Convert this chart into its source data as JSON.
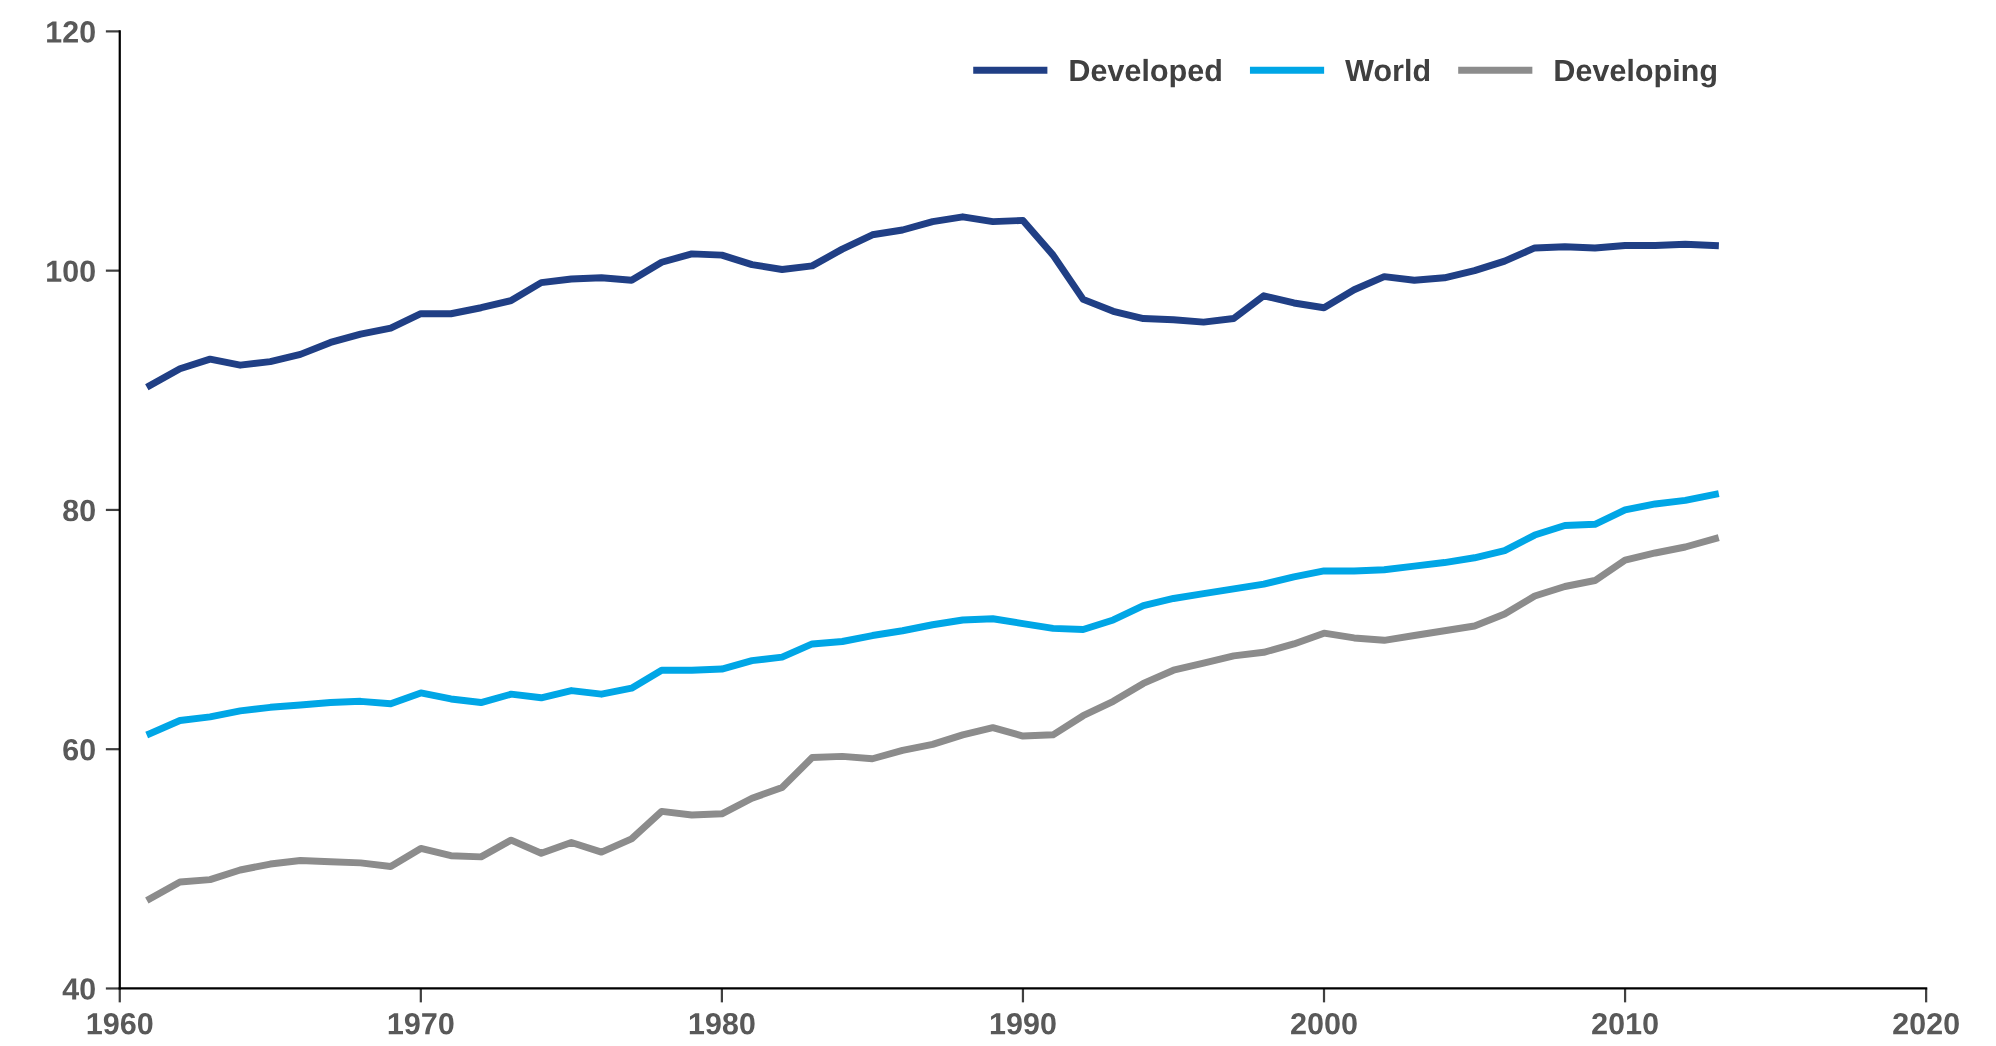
{
  "chart_data": {
    "type": "line",
    "x": [
      1961,
      1962,
      1963,
      1964,
      1965,
      1966,
      1967,
      1968,
      1969,
      1970,
      1971,
      1972,
      1973,
      1974,
      1975,
      1976,
      1977,
      1978,
      1979,
      1980,
      1981,
      1982,
      1983,
      1984,
      1985,
      1986,
      1987,
      1988,
      1989,
      1990,
      1991,
      1992,
      1993,
      1994,
      1995,
      1996,
      1997,
      1998,
      1999,
      2000,
      2001,
      2002,
      2003,
      2004,
      2005,
      2006,
      2007,
      2008,
      2009,
      2010,
      2011,
      2012,
      2013
    ],
    "series": [
      {
        "name": "Developed",
        "color": "#203f85",
        "values": [
          90.4,
          91.8,
          92.6,
          92.1,
          92.4,
          93.0,
          94.0,
          94.7,
          95.2,
          96.4,
          96.4,
          96.9,
          97.5,
          99.0,
          99.3,
          99.4,
          99.2,
          100.7,
          101.4,
          101.3,
          100.5,
          100.1,
          100.4,
          101.8,
          103.0,
          103.4,
          104.1,
          104.5,
          104.1,
          104.2,
          101.3,
          97.6,
          96.6,
          96.0,
          95.9,
          95.7,
          96.0,
          97.9,
          97.3,
          96.9,
          98.4,
          99.5,
          99.2,
          99.4,
          100.0,
          100.8,
          101.9,
          102.0,
          101.9,
          102.1,
          102.1,
          102.2,
          102.1
        ]
      },
      {
        "name": "World",
        "color": "#00a6e6",
        "values": [
          61.3,
          62.4,
          62.7,
          63.2,
          63.5,
          63.7,
          63.9,
          64.0,
          63.8,
          64.7,
          64.2,
          63.9,
          64.6,
          64.3,
          64.9,
          64.6,
          65.1,
          66.6,
          66.6,
          66.7,
          67.4,
          67.7,
          68.8,
          69.0,
          69.5,
          69.9,
          70.4,
          70.8,
          70.9,
          70.5,
          70.1,
          70.0,
          70.8,
          72.0,
          72.6,
          73.0,
          73.4,
          73.8,
          74.4,
          74.9,
          74.9,
          75.0,
          75.3,
          75.6,
          76.0,
          76.6,
          77.9,
          78.7,
          78.8,
          80.0,
          80.5,
          80.8,
          81.3
        ]
      },
      {
        "name": "Developing",
        "color": "#8c8c8c",
        "values": [
          47.5,
          48.9,
          49.1,
          49.9,
          50.4,
          50.7,
          50.6,
          50.5,
          50.2,
          51.7,
          51.1,
          51.0,
          52.4,
          51.3,
          52.2,
          51.4,
          52.5,
          54.8,
          54.5,
          54.6,
          55.9,
          56.8,
          59.3,
          59.4,
          59.2,
          59.9,
          60.4,
          61.2,
          61.8,
          61.1,
          61.2,
          62.8,
          64.0,
          65.5,
          66.6,
          67.2,
          67.8,
          68.1,
          68.8,
          69.7,
          69.3,
          69.1,
          69.5,
          69.9,
          70.3,
          71.3,
          72.8,
          73.6,
          74.1,
          75.8,
          76.4,
          76.9,
          77.6
        ]
      }
    ],
    "xlim": [
      1960,
      2020
    ],
    "xticks": [
      1960,
      1970,
      1980,
      1990,
      2000,
      2010,
      2020
    ],
    "ylim": [
      40,
      120
    ],
    "yticks": [
      40,
      60,
      80,
      100,
      120
    ],
    "grid": false,
    "legend": "top right",
    "marker": "none",
    "line_style": "solid"
  }
}
